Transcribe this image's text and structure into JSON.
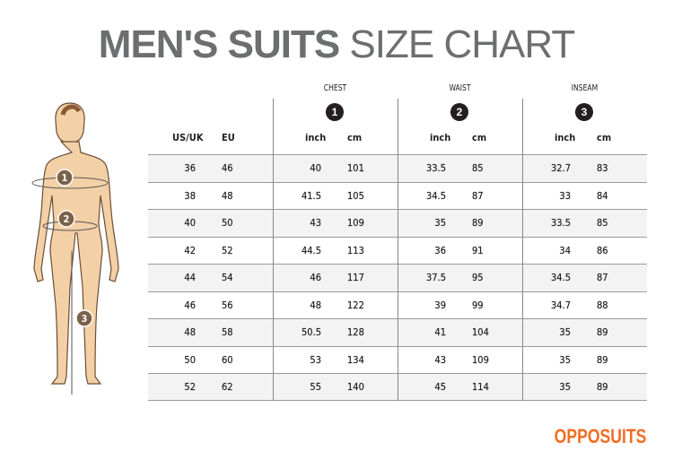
{
  "title": {
    "bold": "MEN'S SUITS",
    "light": "SIZE CHART"
  },
  "figure": {
    "markers": [
      "1",
      "2",
      "3"
    ]
  },
  "table": {
    "groups": [
      {
        "label": "CHEST",
        "number": "1"
      },
      {
        "label": "WAIST",
        "number": "2"
      },
      {
        "label": "INSEAM",
        "number": "3"
      }
    ],
    "headers": {
      "us_uk": "US/UK",
      "eu": "EU",
      "inch": "inch",
      "cm": "cm"
    },
    "rows": [
      [
        "36",
        "46",
        "40",
        "101",
        "33.5",
        "85",
        "32.7",
        "83"
      ],
      [
        "38",
        "48",
        "41.5",
        "105",
        "34.5",
        "87",
        "33",
        "84"
      ],
      [
        "40",
        "50",
        "43",
        "109",
        "35",
        "89",
        "33.5",
        "85"
      ],
      [
        "42",
        "52",
        "44.5",
        "113",
        "36",
        "91",
        "34",
        "86"
      ],
      [
        "44",
        "54",
        "46",
        "117",
        "37.5",
        "95",
        "34.5",
        "87"
      ],
      [
        "46",
        "56",
        "48",
        "122",
        "39",
        "99",
        "34.7",
        "88"
      ],
      [
        "48",
        "58",
        "50.5",
        "128",
        "41",
        "104",
        "35",
        "89"
      ],
      [
        "50",
        "60",
        "53",
        "134",
        "43",
        "109",
        "35",
        "89"
      ],
      [
        "52",
        "62",
        "55",
        "140",
        "45",
        "114",
        "35",
        "89"
      ]
    ]
  },
  "brand": "OPPOSUITS",
  "colors": {
    "title": "#6d6e70",
    "brand": "#f26c22",
    "marker": "#7a6249",
    "skin": "#f3d0a6"
  }
}
